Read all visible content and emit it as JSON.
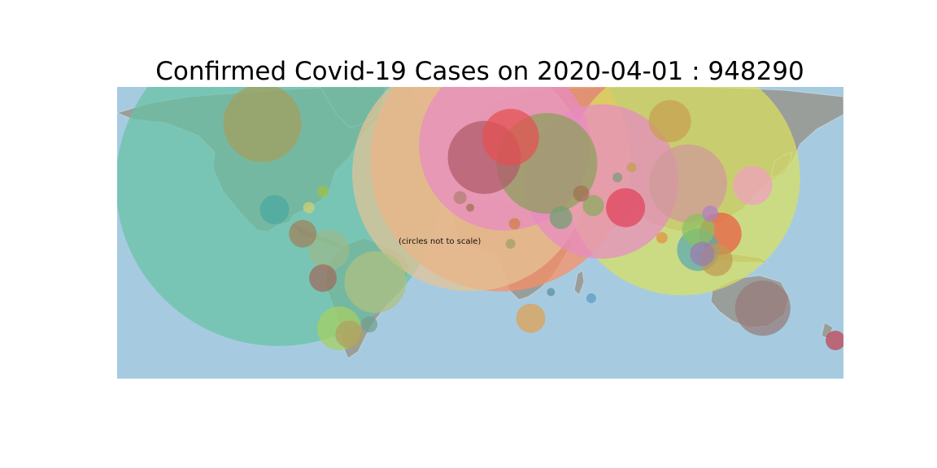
{
  "title": "Confirmed Covid-19 Cases on 2020-04-01 : 948290",
  "note": "(circles not to scale)",
  "colors": {
    "ocean": "#a6cbe1",
    "land": "#9a9e9b",
    "coast": "#c9d4d8"
  },
  "chart_data": {
    "type": "bubble-map",
    "date": "2020-04-01",
    "total_confirmed": 948290,
    "x_range_lon": [
      -180,
      180
    ],
    "y_range_lat": [
      -60,
      85
    ],
    "bubbles": [
      {
        "lon": -100,
        "lat": 37,
        "rel": 200,
        "color": "#66c2a5"
      },
      {
        "lon": 10,
        "lat": 48,
        "rel": 160,
        "color": "#fc8d62"
      },
      {
        "lon": -5,
        "lat": 42,
        "rel": 145,
        "color": "#e5c494"
      },
      {
        "lon": 12,
        "lat": 56,
        "rel": 105,
        "color": "#e78ac3"
      },
      {
        "lon": 100,
        "lat": 40,
        "rel": 145,
        "color": "#d9e060"
      },
      {
        "lon": 60,
        "lat": 38,
        "rel": 95,
        "color": "#e78ac3"
      },
      {
        "lon": 33,
        "lat": 47,
        "rel": 62,
        "color": "#8aa05a"
      },
      {
        "lon": 2,
        "lat": 50,
        "rel": 45,
        "color": "#b05a6a"
      },
      {
        "lon": 15,
        "lat": 60,
        "rel": 35,
        "color": "#e45050"
      },
      {
        "lon": -108,
        "lat": 67,
        "rel": 48,
        "color": "#a5a05a"
      },
      {
        "lon": 103,
        "lat": 37,
        "rel": 48,
        "color": "#d09a9a"
      },
      {
        "lon": 135,
        "lat": 36,
        "rel": 24,
        "color": "#f0a0c0"
      },
      {
        "lon": 94,
        "lat": 68,
        "rel": 26,
        "color": "#c8a050"
      },
      {
        "lon": 72,
        "lat": 25,
        "rel": 24,
        "color": "#e0405a"
      },
      {
        "lon": 140,
        "lat": -25,
        "rel": 34,
        "color": "#957a7a"
      },
      {
        "lon": 176,
        "lat": -41,
        "rel": 12,
        "color": "#c04050"
      },
      {
        "lon": 119,
        "lat": 12,
        "rel": 26,
        "color": "#ea5a40"
      },
      {
        "lon": 117,
        "lat": -1,
        "rel": 20,
        "color": "#c09a50"
      },
      {
        "lon": 108,
        "lat": 4,
        "rel": 26,
        "color": "#5aa8b0"
      },
      {
        "lon": 108,
        "lat": 14,
        "rel": 20,
        "color": "#8ac060"
      },
      {
        "lon": 110,
        "lat": 2,
        "rel": 15,
        "color": "#9a7ab0"
      },
      {
        "lon": -102,
        "lat": 24,
        "rel": 18,
        "color": "#4aa8a0"
      },
      {
        "lon": -78,
        "lat": -10,
        "rel": 17,
        "color": "#a06a5a"
      },
      {
        "lon": -88,
        "lat": 12,
        "rel": 17,
        "color": "#a0805a"
      },
      {
        "lon": -75,
        "lat": 4,
        "rel": 25,
        "color": "#9aba8a"
      },
      {
        "lon": -70,
        "lat": -35,
        "rel": 27,
        "color": "#a8d060"
      },
      {
        "lon": -65,
        "lat": -38,
        "rel": 17,
        "color": "#b0a060"
      },
      {
        "lon": -55,
        "lat": -33,
        "rel": 10,
        "color": "#70a090"
      },
      {
        "lon": -52,
        "lat": -12,
        "rel": 38,
        "color": "#b0c080"
      },
      {
        "lon": 25,
        "lat": -30,
        "rel": 18,
        "color": "#e0a050"
      },
      {
        "lon": 40,
        "lat": 20,
        "rel": 14,
        "color": "#70a070"
      },
      {
        "lon": 50,
        "lat": 32,
        "rel": 10,
        "color": "#a07050"
      },
      {
        "lon": 90,
        "lat": 10,
        "rel": 7,
        "color": "#e09040"
      },
      {
        "lon": 114,
        "lat": 22,
        "rel": 10,
        "color": "#b080c0"
      },
      {
        "lon": 68,
        "lat": 40,
        "rel": 6,
        "color": "#7a9a7a"
      },
      {
        "lon": 75,
        "lat": 45,
        "rel": 6,
        "color": "#c0a050"
      },
      {
        "lon": 56,
        "lat": 26,
        "rel": 13,
        "color": "#88aa60"
      },
      {
        "lon": 17,
        "lat": 17,
        "rel": 7,
        "color": "#d08040"
      },
      {
        "lon": -10,
        "lat": 30,
        "rel": 8,
        "color": "#b08070"
      },
      {
        "lon": 55,
        "lat": -20,
        "rel": 6,
        "color": "#5a9ac0"
      },
      {
        "lon": 35,
        "lat": -17,
        "rel": 5,
        "color": "#5a8aa0"
      },
      {
        "lon": -85,
        "lat": 25,
        "rel": 7,
        "color": "#d0d070"
      },
      {
        "lon": -78,
        "lat": 33,
        "rel": 7,
        "color": "#a0c040"
      },
      {
        "lon": 15,
        "lat": 7,
        "rel": 6,
        "color": "#a0a060"
      },
      {
        "lon": -5,
        "lat": 25,
        "rel": 5,
        "color": "#a07050"
      }
    ]
  }
}
